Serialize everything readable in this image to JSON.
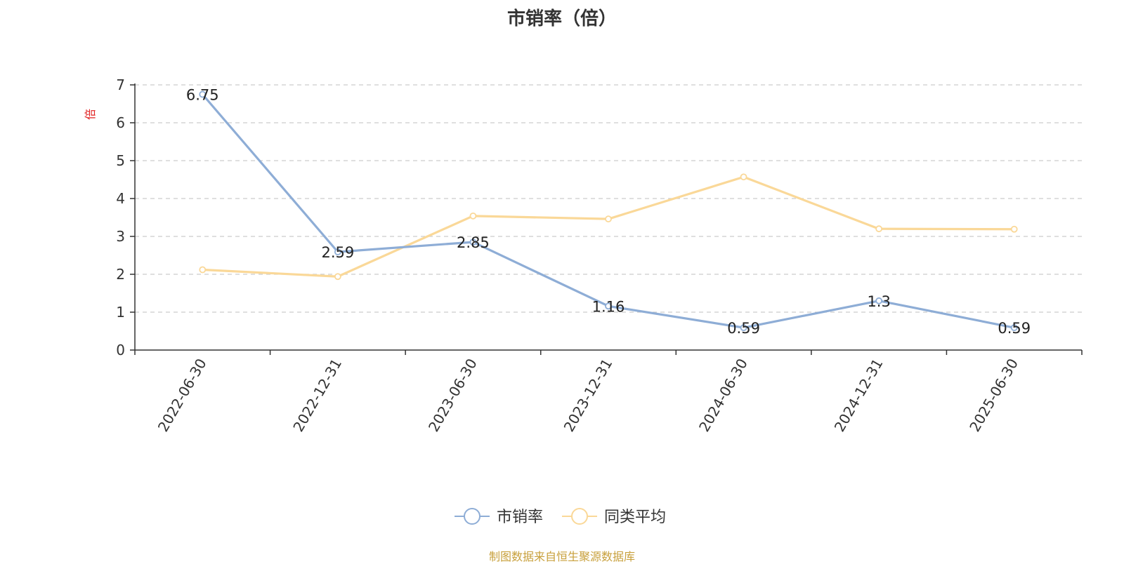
{
  "chart_data": {
    "type": "line",
    "title": "市销率（倍）",
    "ylabel": "倍",
    "xlabel": "",
    "categories": [
      "2022-06-30",
      "2022-12-31",
      "2023-06-30",
      "2023-12-31",
      "2024-06-30",
      "2024-12-31",
      "2025-06-30"
    ],
    "ylim": [
      0,
      7
    ],
    "yticks": [
      "0",
      "1",
      "2",
      "3",
      "4",
      "5",
      "6",
      "7"
    ],
    "grid": "horizontal-dashed",
    "legend_position": "bottom-center",
    "series": [
      {
        "name": "市销率",
        "color": "#8eadd6",
        "values": [
          6.75,
          2.59,
          2.85,
          1.16,
          0.59,
          1.3,
          0.59
        ],
        "labels": [
          "6.75",
          "2.59",
          "2.85",
          "1.16",
          "0.59",
          "1.3",
          "0.59"
        ]
      },
      {
        "name": "同类平均",
        "color": "#fad898",
        "values": [
          2.12,
          1.94,
          3.54,
          3.46,
          4.57,
          3.2,
          3.19
        ]
      }
    ]
  },
  "footer": {
    "source": "制图数据来自恒生聚源数据库",
    "source_color": "#c8a03c"
  },
  "colors": {
    "unit_label": "#e02020",
    "axis": "#333333",
    "grid": "#cccccc"
  }
}
